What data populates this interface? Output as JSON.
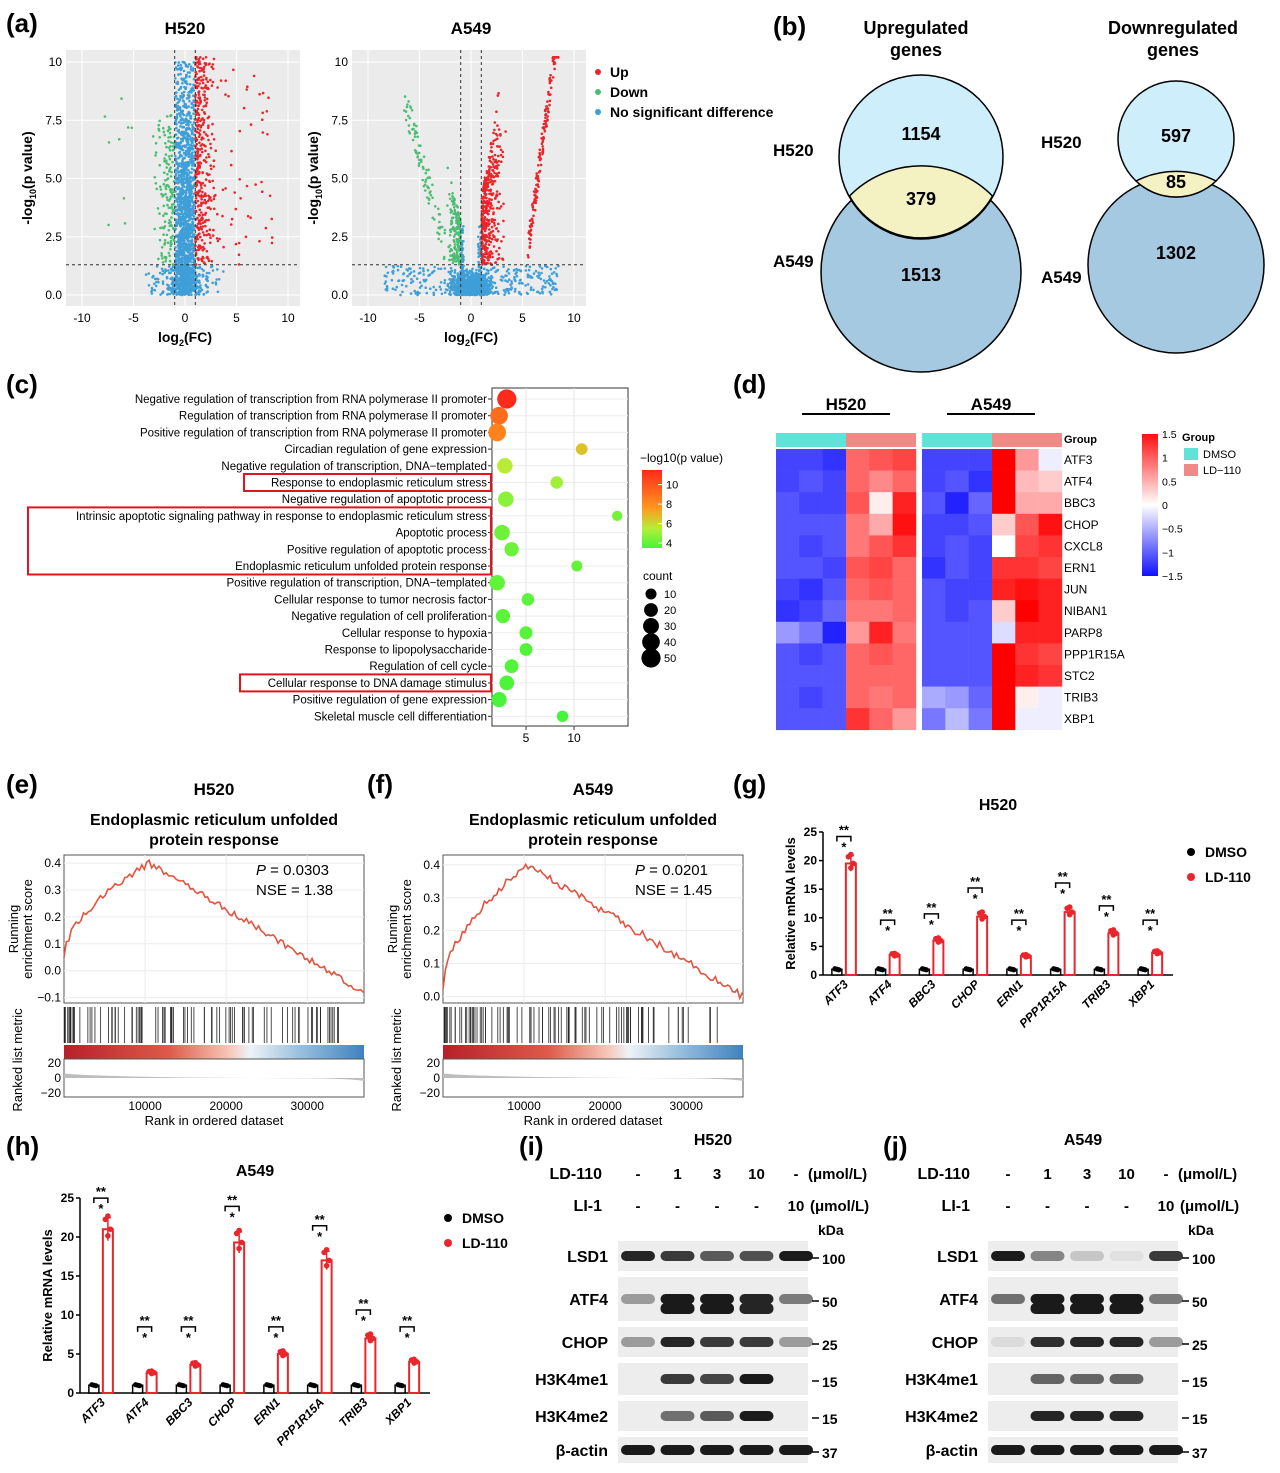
{
  "panel_labels": [
    "(a)",
    "(b)",
    "(c)",
    "(d)",
    "(e)",
    "(f)",
    "(g)",
    "(h)",
    "(i)",
    "(j)"
  ],
  "panel_a": {
    "titles": [
      "H520",
      "A549"
    ],
    "xlabel": "log2(FC)",
    "ylabel": "-log10(p value)",
    "xticks": [
      "-10",
      "-5",
      "0",
      "5",
      "10"
    ],
    "yticks": [
      "0.0",
      "2.5",
      "5.0",
      "7.5",
      "10"
    ],
    "legend": [
      {
        "label": "Up",
        "color": "#e8262c"
      },
      {
        "label": "Down",
        "color": "#4dbd74"
      },
      {
        "label": "No significant difference",
        "color": "#3f9fd8"
      }
    ]
  },
  "panel_b": {
    "titles": [
      "Upregulated\ngenes",
      "Downregulated\ngenes"
    ],
    "up": {
      "H520_only": "1154",
      "overlap": "379",
      "A549_only": "1513"
    },
    "down": {
      "H520_only": "597",
      "overlap": "85",
      "A549_only": "1302"
    },
    "set_labels": [
      "H520",
      "A549"
    ],
    "colors": {
      "h520": "#cdeefa",
      "a549": "#a6c9e2",
      "overlap": "#f4f1c3"
    }
  },
  "panel_c": {
    "terms": [
      {
        "label": "Negative regulation of transcription from RNA polymerase II promoter",
        "x": 3.0,
        "count": 50,
        "logp": 11.5,
        "boxed": false
      },
      {
        "label": "Regulation of transcription from RNA polymerase II promoter",
        "x": 2.2,
        "count": 40,
        "logp": 9.6,
        "boxed": false
      },
      {
        "label": "Positive regulation of transcription from RNA polymerase II promoter",
        "x": 2.0,
        "count": 40,
        "logp": 9.0,
        "boxed": false
      },
      {
        "label": "Circadian regulation of gene expression",
        "x": 10.8,
        "count": 12,
        "logp": 7.2,
        "boxed": false
      },
      {
        "label": "Negative regulation of transcription, DNA−templated",
        "x": 2.8,
        "count": 28,
        "logp": 6.0,
        "boxed": false
      },
      {
        "label": "Response to endoplasmic reticulum stress",
        "x": 8.2,
        "count": 15,
        "logp": 5.5,
        "boxed": true
      },
      {
        "label": "Negative regulation of apoptotic process",
        "x": 2.9,
        "count": 28,
        "logp": 5.0,
        "boxed": false
      },
      {
        "label": "Intrinsic apoptotic signaling pathway in response to endoplasmic reticulum stress",
        "x": 14.5,
        "count": 8,
        "logp": 4.5,
        "boxed": true
      },
      {
        "label": "Apoptotic process",
        "x": 2.5,
        "count": 28,
        "logp": 4.4,
        "boxed": true
      },
      {
        "label": "Positive regulation of apoptotic process",
        "x": 3.5,
        "count": 22,
        "logp": 4.3,
        "boxed": true
      },
      {
        "label": "Endoplasmic reticulum unfolded protein response",
        "x": 10.3,
        "count": 10,
        "logp": 4.2,
        "boxed": true
      },
      {
        "label": "Positive regulation of transcription, DNA−templated",
        "x": 2.0,
        "count": 28,
        "logp": 4.1,
        "boxed": false
      },
      {
        "label": "Cellular response to tumor necrosis factor",
        "x": 5.2,
        "count": 15,
        "logp": 4.0,
        "boxed": false
      },
      {
        "label": "Negative regulation of cell proliferation",
        "x": 2.6,
        "count": 22,
        "logp": 4.0,
        "boxed": false
      },
      {
        "label": "Cellular response to hypoxia",
        "x": 5.0,
        "count": 17,
        "logp": 3.9,
        "boxed": false
      },
      {
        "label": "Response to lipopolysaccharide",
        "x": 5.0,
        "count": 16,
        "logp": 3.8,
        "boxed": false
      },
      {
        "label": "Regulation of cell cycle",
        "x": 3.5,
        "count": 20,
        "logp": 3.8,
        "boxed": false
      },
      {
        "label": "Cellular response to DNA damage stimulus",
        "x": 3.0,
        "count": 24,
        "logp": 3.7,
        "boxed": true
      },
      {
        "label": "Positive regulation of gene expression",
        "x": 2.2,
        "count": 26,
        "logp": 3.6,
        "boxed": false
      },
      {
        "label": "Skeletal muscle cell differentiation",
        "x": 8.8,
        "count": 11,
        "logp": 3.5,
        "boxed": false
      }
    ],
    "xticks": [
      "5",
      "10"
    ],
    "colorbar_title": "−log10(p value)",
    "colorbar_ticks": [
      "10",
      "8",
      "6",
      "4"
    ],
    "count_title": "count",
    "count_ticks": [
      "10",
      "20",
      "30",
      "40",
      "50"
    ]
  },
  "panel_d": {
    "cell_lines": [
      "H520",
      "A549"
    ],
    "genes": [
      "ATF3",
      "ATF4",
      "BBC3",
      "CHOP",
      "CXCL8",
      "ERN1",
      "JUN",
      "NIBAN1",
      "PARP8",
      "PPP1R15A",
      "STC2",
      "TRIB3",
      "XBP1"
    ],
    "group_label": "Group",
    "colorbar_ticks": [
      "1.5",
      "1",
      "0.5",
      "0",
      "−0.5",
      "−1",
      "−1.5"
    ],
    "legend_title": "Group",
    "legend": [
      {
        "label": "DMSO",
        "color": "#5fe3d9"
      },
      {
        "label": "LD−110",
        "color": "#f08a86"
      }
    ]
  },
  "panel_e": {
    "cell": "H520",
    "title": "Endoplasmic reticulum unfolded\nprotein response",
    "p_label": "P",
    "p_value": " = 0.0303",
    "nse": "NSE = 1.38",
    "ylabel_top": "Running\nenrichment score",
    "ylabel_bottom": "Ranked list metric",
    "yticks_top": [
      "0.4",
      "0.3",
      "0.2",
      "0.1",
      "0.0",
      "−0.1"
    ],
    "yticks_bottom": [
      "20",
      "0",
      "−20"
    ],
    "xticks": [
      "10000",
      "20000",
      "30000"
    ],
    "xlabel": "Rank in ordered dataset"
  },
  "panel_f": {
    "cell": "A549",
    "title": "Endoplasmic reticulum unfolded\nprotein response",
    "p_label": "P",
    "p_value": " = 0.0201",
    "nse": "NSE = 1.45",
    "ylabel_top": "Running\nenrichment score",
    "ylabel_bottom": "Ranked list metric",
    "yticks_top": [
      "0.4",
      "0.3",
      "0.2",
      "0.1",
      "0.0"
    ],
    "yticks_bottom": [
      "20",
      "0",
      "−20"
    ],
    "xticks": [
      "10000",
      "20000",
      "30000"
    ],
    "xlabel": "Rank in ordered dataset"
  },
  "chart_data": [
    {
      "type": "bar",
      "panel": "g",
      "title": "H520",
      "ylabel": "Relative mRNA levels",
      "ylim": [
        0,
        25
      ],
      "yticks": [
        "0",
        "5",
        "10",
        "15",
        "20",
        "25"
      ],
      "categories": [
        "ATF3",
        "ATF4",
        "BBC3",
        "CHOP",
        "ERN1",
        "PPP1R15A",
        "TRIB3",
        "XBP1"
      ],
      "series": [
        {
          "name": "DMSO",
          "color": "#000000",
          "values": [
            1,
            1,
            1,
            1,
            1,
            1,
            1,
            1
          ]
        },
        {
          "name": "LD-110",
          "color": "#e8262c",
          "values": [
            19.5,
            3.5,
            6.0,
            10.2,
            3.3,
            11.0,
            7.3,
            3.9
          ]
        }
      ],
      "significance": [
        "***",
        "***",
        "***",
        "***",
        "***",
        "***",
        "***",
        "***"
      ]
    },
    {
      "type": "bar",
      "panel": "h",
      "title": "A549",
      "ylabel": "Relative mRNA levels",
      "ylim": [
        0,
        25
      ],
      "yticks": [
        "0",
        "5",
        "10",
        "15",
        "20",
        "25"
      ],
      "categories": [
        "ATF3",
        "ATF4",
        "BBC3",
        "CHOP",
        "ERN1",
        "PPP1R15A",
        "TRIB3",
        "XBP1"
      ],
      "series": [
        {
          "name": "DMSO",
          "color": "#000000",
          "values": [
            1,
            1,
            1,
            1,
            1,
            1,
            1,
            1
          ]
        },
        {
          "name": "LD-110",
          "color": "#e8262c",
          "values": [
            21.0,
            2.6,
            3.6,
            19.3,
            5.0,
            17.0,
            7.0,
            4.0
          ]
        }
      ],
      "significance": [
        "***",
        "***",
        "***",
        "***",
        "***",
        "***",
        "***",
        "***"
      ]
    }
  ],
  "panel_i": {
    "title": "H520",
    "row1_label": "LD-110",
    "row1": [
      "-",
      "1",
      "3",
      "10",
      "-"
    ],
    "row1_unit": "(μmol/L)",
    "row2_label": "LI-1",
    "row2": [
      "-",
      "-",
      "-",
      "-",
      "10"
    ],
    "row2_unit": "(μmol/L)",
    "kda": "kDa",
    "blots": [
      {
        "label": "LSD1",
        "mw": "100",
        "bands": [
          0.9,
          0.8,
          0.65,
          0.7,
          0.95
        ]
      },
      {
        "label": "ATF4",
        "mw": "50",
        "bands": [
          0.35,
          0.95,
          0.95,
          0.9,
          0.5
        ]
      },
      {
        "label": "CHOP",
        "mw": "25",
        "bands": [
          0.35,
          0.9,
          0.8,
          0.8,
          0.35
        ]
      },
      {
        "label": "H3K4me1",
        "mw": "15",
        "bands": [
          0,
          0.8,
          0.75,
          0.95,
          0
        ]
      },
      {
        "label": "H3K4me2",
        "mw": "15",
        "bands": [
          0,
          0.55,
          0.65,
          0.95,
          0
        ]
      },
      {
        "label": "β-actin",
        "mw": "37",
        "bands": [
          0.95,
          0.95,
          0.95,
          0.95,
          0.95
        ]
      }
    ]
  },
  "panel_j": {
    "title": "A549",
    "row1_label": "LD-110",
    "row1": [
      "-",
      "1",
      "3",
      "10",
      "-"
    ],
    "row1_unit": "(μmol/L)",
    "row2_label": "LI-1",
    "row2": [
      "-",
      "-",
      "-",
      "-",
      "10"
    ],
    "row2_unit": "(μmol/L)",
    "kda": "kDa",
    "blots": [
      {
        "label": "LSD1",
        "mw": "100",
        "bands": [
          0.95,
          0.45,
          0.15,
          0.03,
          0.8
        ]
      },
      {
        "label": "ATF4",
        "mw": "50",
        "bands": [
          0.55,
          0.95,
          0.95,
          0.95,
          0.5
        ]
      },
      {
        "label": "CHOP",
        "mw": "25",
        "bands": [
          0.05,
          0.85,
          0.9,
          0.9,
          0.35
        ]
      },
      {
        "label": "H3K4me1",
        "mw": "15",
        "bands": [
          0,
          0.6,
          0.6,
          0.6,
          0
        ]
      },
      {
        "label": "H3K4me2",
        "mw": "15",
        "bands": [
          0,
          0.9,
          0.9,
          0.9,
          0
        ]
      },
      {
        "label": "β-actin",
        "mw": "37",
        "bands": [
          0.95,
          0.95,
          0.95,
          0.95,
          0.95
        ]
      }
    ]
  }
}
